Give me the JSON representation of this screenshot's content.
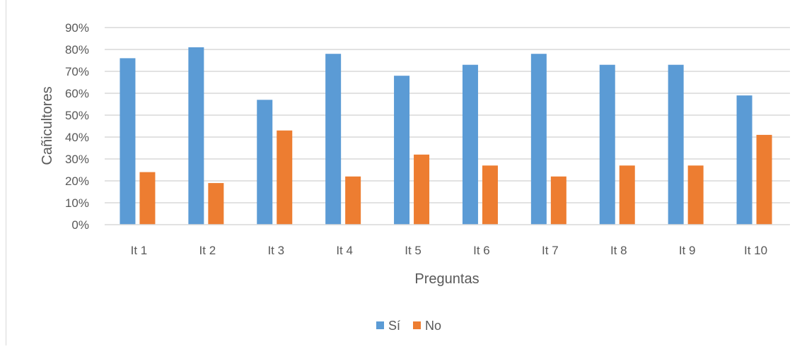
{
  "chart_data": {
    "type": "bar",
    "title": "",
    "xlabel": "Preguntas",
    "ylabel": "Cañicultores",
    "categories": [
      "It 1",
      "It 2",
      "It 3",
      "It 4",
      "It 5",
      "It 6",
      "It 7",
      "It 8",
      "It 9",
      "It 10"
    ],
    "series": [
      {
        "name": "Sí",
        "color": "#5b9bd5",
        "values": [
          76,
          81,
          57,
          78,
          68,
          73,
          78,
          73,
          73,
          59
        ]
      },
      {
        "name": "No",
        "color": "#ed7d31",
        "values": [
          24,
          19,
          43,
          22,
          32,
          27,
          22,
          27,
          27,
          41
        ]
      }
    ],
    "ylim": [
      0,
      90
    ],
    "yticks": [
      "0%",
      "10%",
      "20%",
      "30%",
      "40%",
      "50%",
      "60%",
      "70%",
      "80%",
      "90%"
    ],
    "grid": true,
    "legend_position": "bottom",
    "gridline_color": "#d9d9d9"
  }
}
